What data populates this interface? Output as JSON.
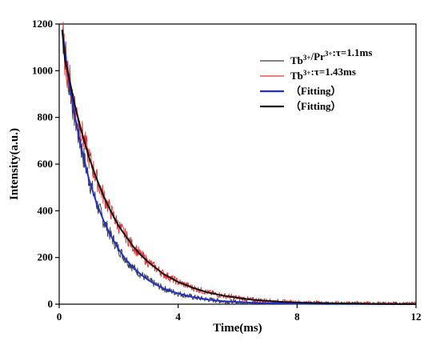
{
  "chart_data": {
    "type": "line",
    "xlabel": "Time(ms)",
    "ylabel": "Intensity(a.u.)",
    "xlim": [
      0,
      12
    ],
    "ylim": [
      0,
      1200
    ],
    "x_ticks": [
      0,
      4,
      8,
      12
    ],
    "y_ticks": [
      0,
      200,
      400,
      600,
      800,
      1000,
      1200
    ],
    "grid": false,
    "legend_position": "top-right",
    "series": [
      {
        "name": "Tb3+/Pr3+:τ=1.1ms",
        "label_parts": {
          "a": "Tb",
          "a_sup": "3+",
          "b": "/Pr",
          "b_sup": "3+",
          "c": ":τ=1.1ms"
        },
        "kind": "noisy",
        "color": "#3a3a3a",
        "x": [
          0.1,
          0.2,
          0.3,
          0.5,
          0.75,
          1.0,
          1.25,
          1.5,
          1.75,
          2.0,
          2.25,
          2.5,
          2.75,
          3.0,
          3.25,
          3.5,
          3.75,
          4.0,
          4.5,
          5.0,
          5.5,
          6.0,
          6.5,
          7.0,
          7.5,
          8.0,
          9.0,
          10.0,
          11.0,
          12.0
        ],
        "values": [
          1175,
          1080,
          980,
          820,
          665,
          535,
          435,
          355,
          290,
          235,
          190,
          155,
          127,
          103,
          84,
          68,
          56,
          46,
          30,
          20,
          13,
          9,
          6,
          4,
          3,
          2,
          1,
          1,
          0,
          0
        ]
      },
      {
        "name": "Tb3+:τ=1.43ms",
        "label_parts": {
          "a": "Tb",
          "a_sup": "3+",
          "b": "",
          "b_sup": "",
          "c": ":τ=1.43ms"
        },
        "kind": "noisy",
        "color": "#e03030",
        "x": [
          0.1,
          0.2,
          0.3,
          0.5,
          0.75,
          1.0,
          1.25,
          1.5,
          1.75,
          2.0,
          2.25,
          2.5,
          2.75,
          3.0,
          3.25,
          3.5,
          3.75,
          4.0,
          4.5,
          5.0,
          5.5,
          6.0,
          6.5,
          7.0,
          7.5,
          8.0,
          9.0,
          10.0,
          11.0,
          12.0
        ],
        "values": [
          1175,
          1040,
          990,
          865,
          740,
          630,
          540,
          460,
          395,
          335,
          290,
          245,
          210,
          180,
          155,
          130,
          112,
          95,
          70,
          50,
          37,
          27,
          19,
          14,
          10,
          7,
          4,
          2,
          1,
          0
        ]
      },
      {
        "name": "（Fitting）",
        "kind": "fit",
        "color": "#1f2fd0",
        "x": [
          0.1,
          0.2,
          0.3,
          0.5,
          0.75,
          1.0,
          1.25,
          1.5,
          1.75,
          2.0,
          2.25,
          2.5,
          2.75,
          3.0,
          3.25,
          3.5,
          3.75,
          4.0,
          4.5,
          5.0,
          5.5,
          6.0,
          6.5,
          7.0,
          7.5,
          8.0,
          9.0,
          10.0,
          11.0,
          12.0
        ],
        "values": [
          1175,
          1080,
          980,
          820,
          665,
          535,
          435,
          355,
          290,
          235,
          190,
          155,
          127,
          103,
          84,
          68,
          56,
          46,
          30,
          20,
          13,
          9,
          6,
          4,
          3,
          2,
          1,
          1,
          0,
          0
        ]
      },
      {
        "name": "（Fitting）",
        "kind": "fit",
        "color": "#111111",
        "x": [
          0.1,
          0.2,
          0.3,
          0.5,
          0.75,
          1.0,
          1.25,
          1.5,
          1.75,
          2.0,
          2.25,
          2.5,
          2.75,
          3.0,
          3.25,
          3.5,
          3.75,
          4.0,
          4.5,
          5.0,
          5.5,
          6.0,
          6.5,
          7.0,
          7.5,
          8.0,
          9.0,
          10.0,
          11.0,
          12.0
        ],
        "values": [
          1175,
          1040,
          990,
          865,
          740,
          630,
          540,
          460,
          395,
          335,
          290,
          245,
          210,
          180,
          155,
          130,
          112,
          95,
          70,
          50,
          37,
          27,
          19,
          14,
          10,
          7,
          4,
          2,
          1,
          0
        ]
      }
    ]
  }
}
